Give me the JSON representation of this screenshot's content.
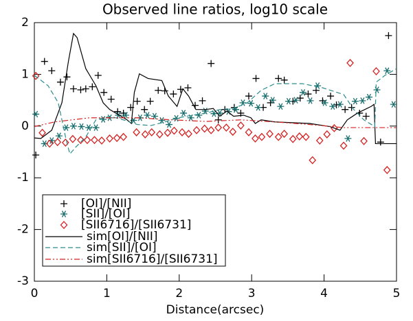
{
  "chart_data": {
    "type": "line",
    "title": "Observed line ratios, log10 scale",
    "x_label": "Distance(arcsec)",
    "xlim": [
      0,
      5
    ],
    "xticks": [
      0,
      1,
      2,
      3,
      4,
      5
    ],
    "ylim": [
      -3,
      2
    ],
    "yticks": [
      -3,
      -2,
      -1,
      0,
      1,
      2
    ],
    "series": [
      {
        "name": "[OI]/[NII]",
        "color": "#000000",
        "marker": "plus",
        "x": [
          0.02,
          0.14,
          0.24,
          0.36,
          0.45,
          0.54,
          0.64,
          0.71,
          0.8,
          0.88,
          0.96,
          1.06,
          1.15,
          1.23,
          1.33,
          1.42,
          1.52,
          1.6,
          1.71,
          1.8,
          1.92,
          2.02,
          2.12,
          2.22,
          2.32,
          2.44,
          2.54,
          2.63,
          2.76,
          2.85,
          2.96,
          3.06,
          3.16,
          3.26,
          3.37,
          3.45,
          3.57,
          3.67,
          3.78,
          3.89,
          3.98,
          4.09,
          4.17,
          4.29,
          4.38,
          4.49,
          4.58,
          4.78,
          4.89
        ],
        "values": [
          -0.56,
          1.25,
          1.07,
          0.85,
          0.95,
          0.72,
          0.7,
          0.72,
          0.76,
          0.98,
          0.65,
          0.52,
          0.28,
          0.25,
          0.36,
          0.48,
          0.32,
          0.48,
          0.69,
          0.68,
          0.62,
          0.71,
          0.74,
          0.4,
          0.49,
          1.21,
          0.12,
          0.32,
          0.36,
          0.25,
          0.58,
          0.92,
          0.36,
          0.45,
          0.92,
          0.89,
          0.48,
          0.54,
          0.62,
          0.69,
          0.49,
          0.58,
          0.41,
          0.32,
          0.36,
          0.25,
          0.19,
          -0.31,
          1.75
        ]
      },
      {
        "name": "[SII]/[OI]",
        "color": "#186d6d",
        "marker": "asterisk",
        "x": [
          0.02,
          0.14,
          0.24,
          0.34,
          0.44,
          0.54,
          0.65,
          0.75,
          0.85,
          0.95,
          1.04,
          1.16,
          1.26,
          1.37,
          1.46,
          1.56,
          1.66,
          1.76,
          1.86,
          1.96,
          2.06,
          2.16,
          2.27,
          2.36,
          2.48,
          2.56,
          2.68,
          2.78,
          2.88,
          2.99,
          3.09,
          3.19,
          3.29,
          3.4,
          3.51,
          3.61,
          3.71,
          3.81,
          3.91,
          4.01,
          4.12,
          4.22,
          4.33,
          4.43,
          4.53,
          4.62,
          4.73,
          4.87,
          4.96
        ],
        "values": [
          0.23,
          -0.34,
          -0.28,
          -0.19,
          -0.03,
          0,
          -0.01,
          -0.03,
          -0.03,
          0.13,
          0.16,
          0.21,
          0.21,
          0.11,
          0.16,
          0.21,
          0.19,
          0.11,
          0.03,
          0.15,
          0.25,
          0.16,
          0.21,
          0.29,
          0.24,
          0.25,
          0.28,
          0.32,
          0.45,
          0.44,
          0.36,
          0.58,
          0.5,
          0.38,
          0.48,
          0.5,
          0.65,
          0.49,
          0.78,
          0.45,
          0.38,
          0.42,
          -0.24,
          0.48,
          0.49,
          0.56,
          0.7,
          1.07,
          0.42
        ]
      },
      {
        "name": "[SII6716]/[SII6731]",
        "color": "#d62020",
        "marker": "diamond",
        "x": [
          0.02,
          0.11,
          0.21,
          0.32,
          0.43,
          0.53,
          0.64,
          0.73,
          0.83,
          0.93,
          1.04,
          1.14,
          1.23,
          1.41,
          1.53,
          1.62,
          1.73,
          1.84,
          1.93,
          2.04,
          2.13,
          2.24,
          2.35,
          2.44,
          2.54,
          2.65,
          2.74,
          2.85,
          2.96,
          3.05,
          3.14,
          3.25,
          3.37,
          3.45,
          3.57,
          3.66,
          3.75,
          3.84,
          3.94,
          4.04,
          4.14,
          4.27,
          4.36,
          4.55,
          4.72,
          4.87
        ],
        "values": [
          0.97,
          -0.13,
          -0.34,
          -0.31,
          -0.32,
          -0.25,
          -0.27,
          -0.27,
          -0.27,
          -0.28,
          -0.24,
          -0.23,
          -0.21,
          -0.12,
          -0.16,
          -0.12,
          -0.16,
          -0.13,
          -0.09,
          -0.12,
          -0.15,
          -0.08,
          -0.05,
          -0.08,
          -0.03,
          -0.03,
          -0.11,
          0.01,
          -0.12,
          -0.24,
          -0.21,
          -0.15,
          -0.21,
          -0.15,
          -0.25,
          -0.2,
          -0.21,
          -0.66,
          -0.28,
          -0.16,
          -0.04,
          -0.38,
          1.22,
          -0.29,
          1.06,
          -0.85
        ]
      },
      {
        "name": "sim[OI]/[NII]",
        "color": "#000000",
        "dash": "solid",
        "x": [
          0,
          0.09,
          0.24,
          0.38,
          0.47,
          0.54,
          0.59,
          0.71,
          0.85,
          0.95,
          1.04,
          1.28,
          1.34,
          1.38,
          1.45,
          1.57,
          1.76,
          1.85,
          1.97,
          2.05,
          2.13,
          2.23,
          2.37,
          2.47,
          2.56,
          2.66,
          2.75,
          2.89,
          2.99,
          3.05,
          3.13,
          3.32,
          3.8,
          4.08,
          4.22,
          4.32,
          4.46,
          4.65,
          4.69,
          4.71,
          5
        ],
        "values": [
          -0.23,
          -0.24,
          -0.08,
          0.45,
          1.25,
          1.79,
          1.71,
          1.11,
          0.78,
          0.45,
          0.32,
          0.12,
          0.05,
          0.65,
          1.01,
          0.92,
          0.88,
          0.58,
          0.38,
          0.72,
          0.58,
          0.32,
          0.32,
          0.34,
          0.19,
          0.29,
          0.19,
          0.21,
          0.16,
          0.05,
          0.12,
          0.08,
          0.05,
          -0.01,
          -0.08,
          0.12,
          0.25,
          0.38,
          0.42,
          -0.34,
          -0.34
        ]
      },
      {
        "name": "sim[SII]/[OI]",
        "color": "#2a8c8c",
        "dash": "dashed",
        "x": [
          0,
          0.19,
          0.33,
          0.43,
          0.49,
          0.57,
          0.71,
          0.85,
          1.04,
          1.23,
          1.42,
          1.61,
          1.8,
          1.99,
          2.18,
          2.37,
          2.56,
          2.75,
          2.94,
          3.13,
          3.32,
          3.7,
          3.98,
          4.27,
          4.41,
          4.55,
          4.7,
          4.72,
          4.84,
          5
        ],
        "values": [
          0.98,
          0.78,
          0.45,
          -0.21,
          -0.54,
          -0.41,
          -0.21,
          0.12,
          0.19,
          0.12,
          0.03,
          0.01,
          0.08,
          0.16,
          0.21,
          0.25,
          0.32,
          0.34,
          0.45,
          0.69,
          0.82,
          0.82,
          0.74,
          0.61,
          0.32,
          0.12,
          -0.01,
          0.85,
          0.98,
          1.11
        ]
      },
      {
        "name": "sim[SII6716]/[SII6731]",
        "color": "#d62020",
        "dash": "dashdot",
        "x": [
          0,
          0.28,
          0.76,
          1.42,
          1.9,
          2.37,
          2.85,
          3.32,
          3.8,
          4.27,
          5
        ],
        "values": [
          -0.01,
          0.08,
          0.16,
          0.16,
          0.12,
          0.09,
          0.12,
          0.08,
          0.03,
          -0.03,
          -0.03
        ]
      }
    ]
  }
}
